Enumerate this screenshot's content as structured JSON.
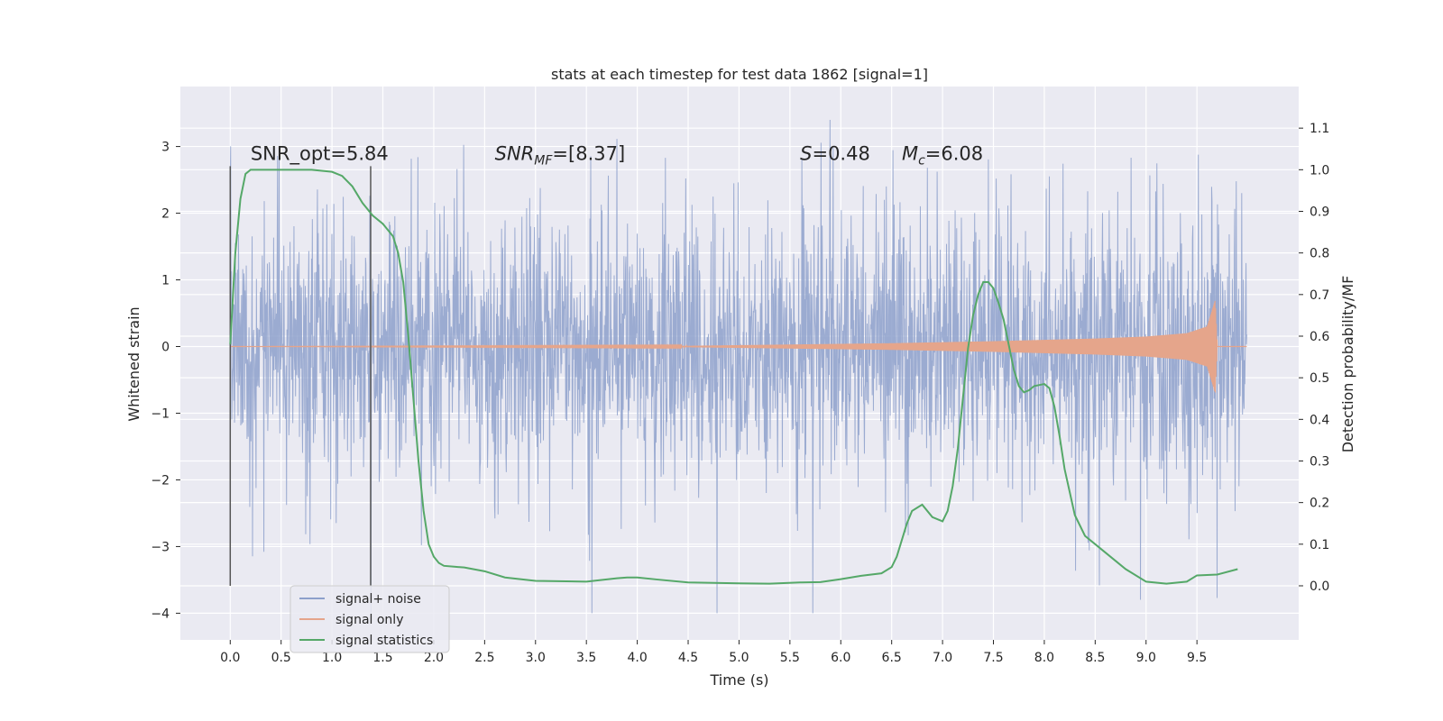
{
  "chart_data": {
    "type": "line",
    "title": "stats at each timestep for test data 1862 [signal=1]",
    "xlabel": "Time (s)",
    "ylabel_left": "Whitened strain",
    "ylabel_right": "Detection probability/MF",
    "xlim": [
      -0.49,
      10.5
    ],
    "xticks": [
      0.0,
      0.5,
      1.0,
      1.5,
      2.0,
      2.5,
      3.0,
      3.5,
      4.0,
      4.5,
      5.0,
      5.5,
      6.0,
      6.5,
      7.0,
      7.5,
      8.0,
      8.5,
      9.0,
      9.5
    ],
    "xtick_labels": [
      "0.0",
      "0.5",
      "1.0",
      "1.5",
      "2.0",
      "2.5",
      "3.0",
      "3.5",
      "4.0",
      "4.5",
      "5.0",
      "5.5",
      "6.0",
      "6.5",
      "7.0",
      "7.5",
      "8.0",
      "8.5",
      "9.0",
      "9.5"
    ],
    "ylim_left": [
      -4.4,
      3.9
    ],
    "yticks_left": [
      -4,
      -3,
      -2,
      -1,
      0,
      1,
      2,
      3
    ],
    "ytick_labels_left": [
      "−4",
      "−3",
      "−2",
      "−1",
      "0",
      "1",
      "2",
      "3"
    ],
    "ylim_right": [
      -0.13,
      1.2
    ],
    "yticks_right": [
      0.0,
      0.1,
      0.2,
      0.3,
      0.4,
      0.5,
      0.6,
      0.7,
      0.8,
      0.9,
      1.0,
      1.1
    ],
    "ytick_labels_right": [
      "0.0",
      "0.1",
      "0.2",
      "0.3",
      "0.4",
      "0.5",
      "0.6",
      "0.7",
      "0.8",
      "0.9",
      "1.0",
      "1.1"
    ],
    "grid": true,
    "legend_position": "bottom-left",
    "series": [
      {
        "name": "signal+ noise",
        "axis": "left",
        "color": "#8da0cb",
        "description_values": {
          "t_start": 0.0,
          "t_end": 9.99,
          "typical_band": [
            -1.5,
            1.5
          ],
          "peak_max": 3.4,
          "peak_min": -4.0
        }
      },
      {
        "name": "signal only",
        "axis": "left",
        "color": "#e5a58b",
        "envelope": {
          "t": [
            0.0,
            4.5,
            5.5,
            6.5,
            7.5,
            8.5,
            9.0,
            9.4,
            9.6,
            9.68,
            9.7,
            9.99
          ],
          "amp": [
            0.0,
            0.01,
            0.03,
            0.05,
            0.08,
            0.12,
            0.15,
            0.2,
            0.3,
            0.7,
            0.0,
            0.0
          ]
        }
      },
      {
        "name": "signal statistics",
        "axis": "right",
        "color": "#55a868",
        "x": [
          0.0,
          0.05,
          0.1,
          0.15,
          0.2,
          0.3,
          0.5,
          0.8,
          1.0,
          1.1,
          1.2,
          1.3,
          1.4,
          1.5,
          1.6,
          1.65,
          1.7,
          1.75,
          1.8,
          1.85,
          1.9,
          1.95,
          2.0,
          2.05,
          2.1,
          2.2,
          2.3,
          2.5,
          2.7,
          3.0,
          3.5,
          3.8,
          3.9,
          4.0,
          4.2,
          4.5,
          5.0,
          5.3,
          5.6,
          5.8,
          6.0,
          6.2,
          6.4,
          6.5,
          6.55,
          6.6,
          6.65,
          6.7,
          6.8,
          6.9,
          7.0,
          7.05,
          7.1,
          7.15,
          7.2,
          7.25,
          7.3,
          7.35,
          7.4,
          7.45,
          7.5,
          7.55,
          7.6,
          7.65,
          7.7,
          7.75,
          7.8,
          7.85,
          7.9,
          8.0,
          8.05,
          8.1,
          8.15,
          8.2,
          8.3,
          8.4,
          8.5,
          8.6,
          8.7,
          8.8,
          9.0,
          9.2,
          9.4,
          9.5,
          9.7,
          9.9
        ],
        "y": [
          0.58,
          0.8,
          0.93,
          0.99,
          1.0,
          1.0,
          1.0,
          1.0,
          0.995,
          0.985,
          0.96,
          0.92,
          0.89,
          0.87,
          0.84,
          0.8,
          0.73,
          0.6,
          0.45,
          0.3,
          0.18,
          0.1,
          0.07,
          0.055,
          0.048,
          0.046,
          0.044,
          0.035,
          0.02,
          0.012,
          0.01,
          0.018,
          0.02,
          0.02,
          0.015,
          0.008,
          0.006,
          0.005,
          0.008,
          0.009,
          0.016,
          0.024,
          0.03,
          0.045,
          0.07,
          0.11,
          0.15,
          0.18,
          0.195,
          0.165,
          0.155,
          0.18,
          0.24,
          0.33,
          0.45,
          0.57,
          0.65,
          0.7,
          0.73,
          0.73,
          0.715,
          0.68,
          0.64,
          0.58,
          0.52,
          0.48,
          0.465,
          0.47,
          0.48,
          0.485,
          0.475,
          0.43,
          0.36,
          0.28,
          0.17,
          0.12,
          0.1,
          0.08,
          0.06,
          0.04,
          0.01,
          0.005,
          0.01,
          0.025,
          0.027,
          0.04
        ]
      }
    ],
    "vertical_lines": [
      0.0,
      1.38
    ],
    "annotations": [
      {
        "text": "SNR_opt=5.84",
        "x": 0.2,
        "y": 2.8
      },
      {
        "text": "SNR_MF=[8.37]",
        "x": 2.6,
        "y": 2.8
      },
      {
        "text": "S=0.48",
        "x": 5.6,
        "y": 2.8
      },
      {
        "text": "M_c=6.08",
        "x": 6.6,
        "y": 2.8
      }
    ]
  }
}
